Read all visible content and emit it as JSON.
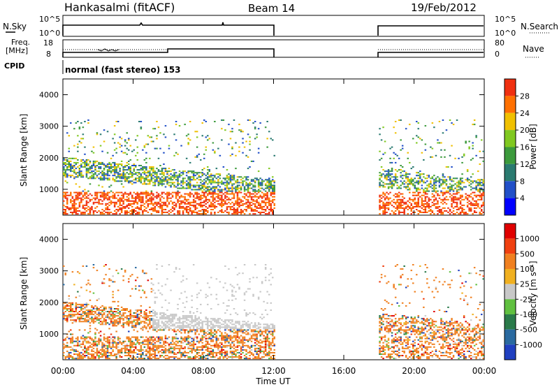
{
  "header": {
    "station": "Hankasalmi (fitACF)",
    "beam": "Beam 14",
    "date": "19/Feb/2012"
  },
  "aux": {
    "nsky_label": "N.Sky",
    "nsearch_label": "N.Search",
    "freq_label_1": "Freq.",
    "freq_label_2": "[MHz]",
    "nave_label": "Nave",
    "cpid_label": "CPID",
    "cpid_text": "normal (fast stereo) 153",
    "noise_ticks": [
      "10^5",
      "10^0"
    ],
    "freq_ticks": [
      "18",
      "8"
    ],
    "nave_ticks": [
      "80",
      "0"
    ]
  },
  "chart_data": [
    {
      "type": "heatmap",
      "name": "power",
      "xlabel": "",
      "ylabel": "Slant Range [km]",
      "x_ticks": [
        "00:00",
        "04:00",
        "08:00",
        "12:00",
        "16:00",
        "20:00",
        "00:00"
      ],
      "y_ticks": [
        "4000",
        "3000",
        "2000",
        "1000"
      ],
      "ylim": [
        180,
        4500
      ],
      "xlim": [
        0,
        24
      ],
      "colorbar_label": "Power [dB]",
      "colorbar_ticks": [
        "28",
        "24",
        "20",
        "16",
        "12",
        "8",
        "4"
      ],
      "colorbar_colors": [
        "#0000ff",
        "#2250c8",
        "#2a7a70",
        "#3c9a3c",
        "#80c820",
        "#f0c000",
        "#ff7000",
        "#f03010"
      ],
      "data_intervals_hours": [
        [
          0,
          12
        ],
        [
          18,
          24
        ]
      ]
    },
    {
      "type": "heatmap",
      "name": "velocity",
      "xlabel": "Time UT",
      "ylabel": "Slant Range [km]",
      "x_ticks": [
        "00:00",
        "04:00",
        "08:00",
        "12:00",
        "16:00",
        "20:00",
        "00:00"
      ],
      "y_ticks": [
        "4000",
        "3000",
        "2000",
        "1000"
      ],
      "ylim": [
        180,
        4500
      ],
      "xlim": [
        0,
        24
      ],
      "colorbar_label": "Velocity [m s⁻¹]",
      "colorbar_ticks": [
        "1000",
        "500",
        "100",
        "25",
        "-25",
        "-100",
        "-500",
        "-1000"
      ],
      "colorbar_colors": [
        "#2040c0",
        "#2a6aa0",
        "#2a7a4a",
        "#60c040",
        "#c8c8c8",
        "#f0b020",
        "#f08020",
        "#f04010",
        "#e00000"
      ],
      "data_intervals_hours": [
        [
          0,
          12
        ],
        [
          18,
          24
        ]
      ]
    }
  ]
}
